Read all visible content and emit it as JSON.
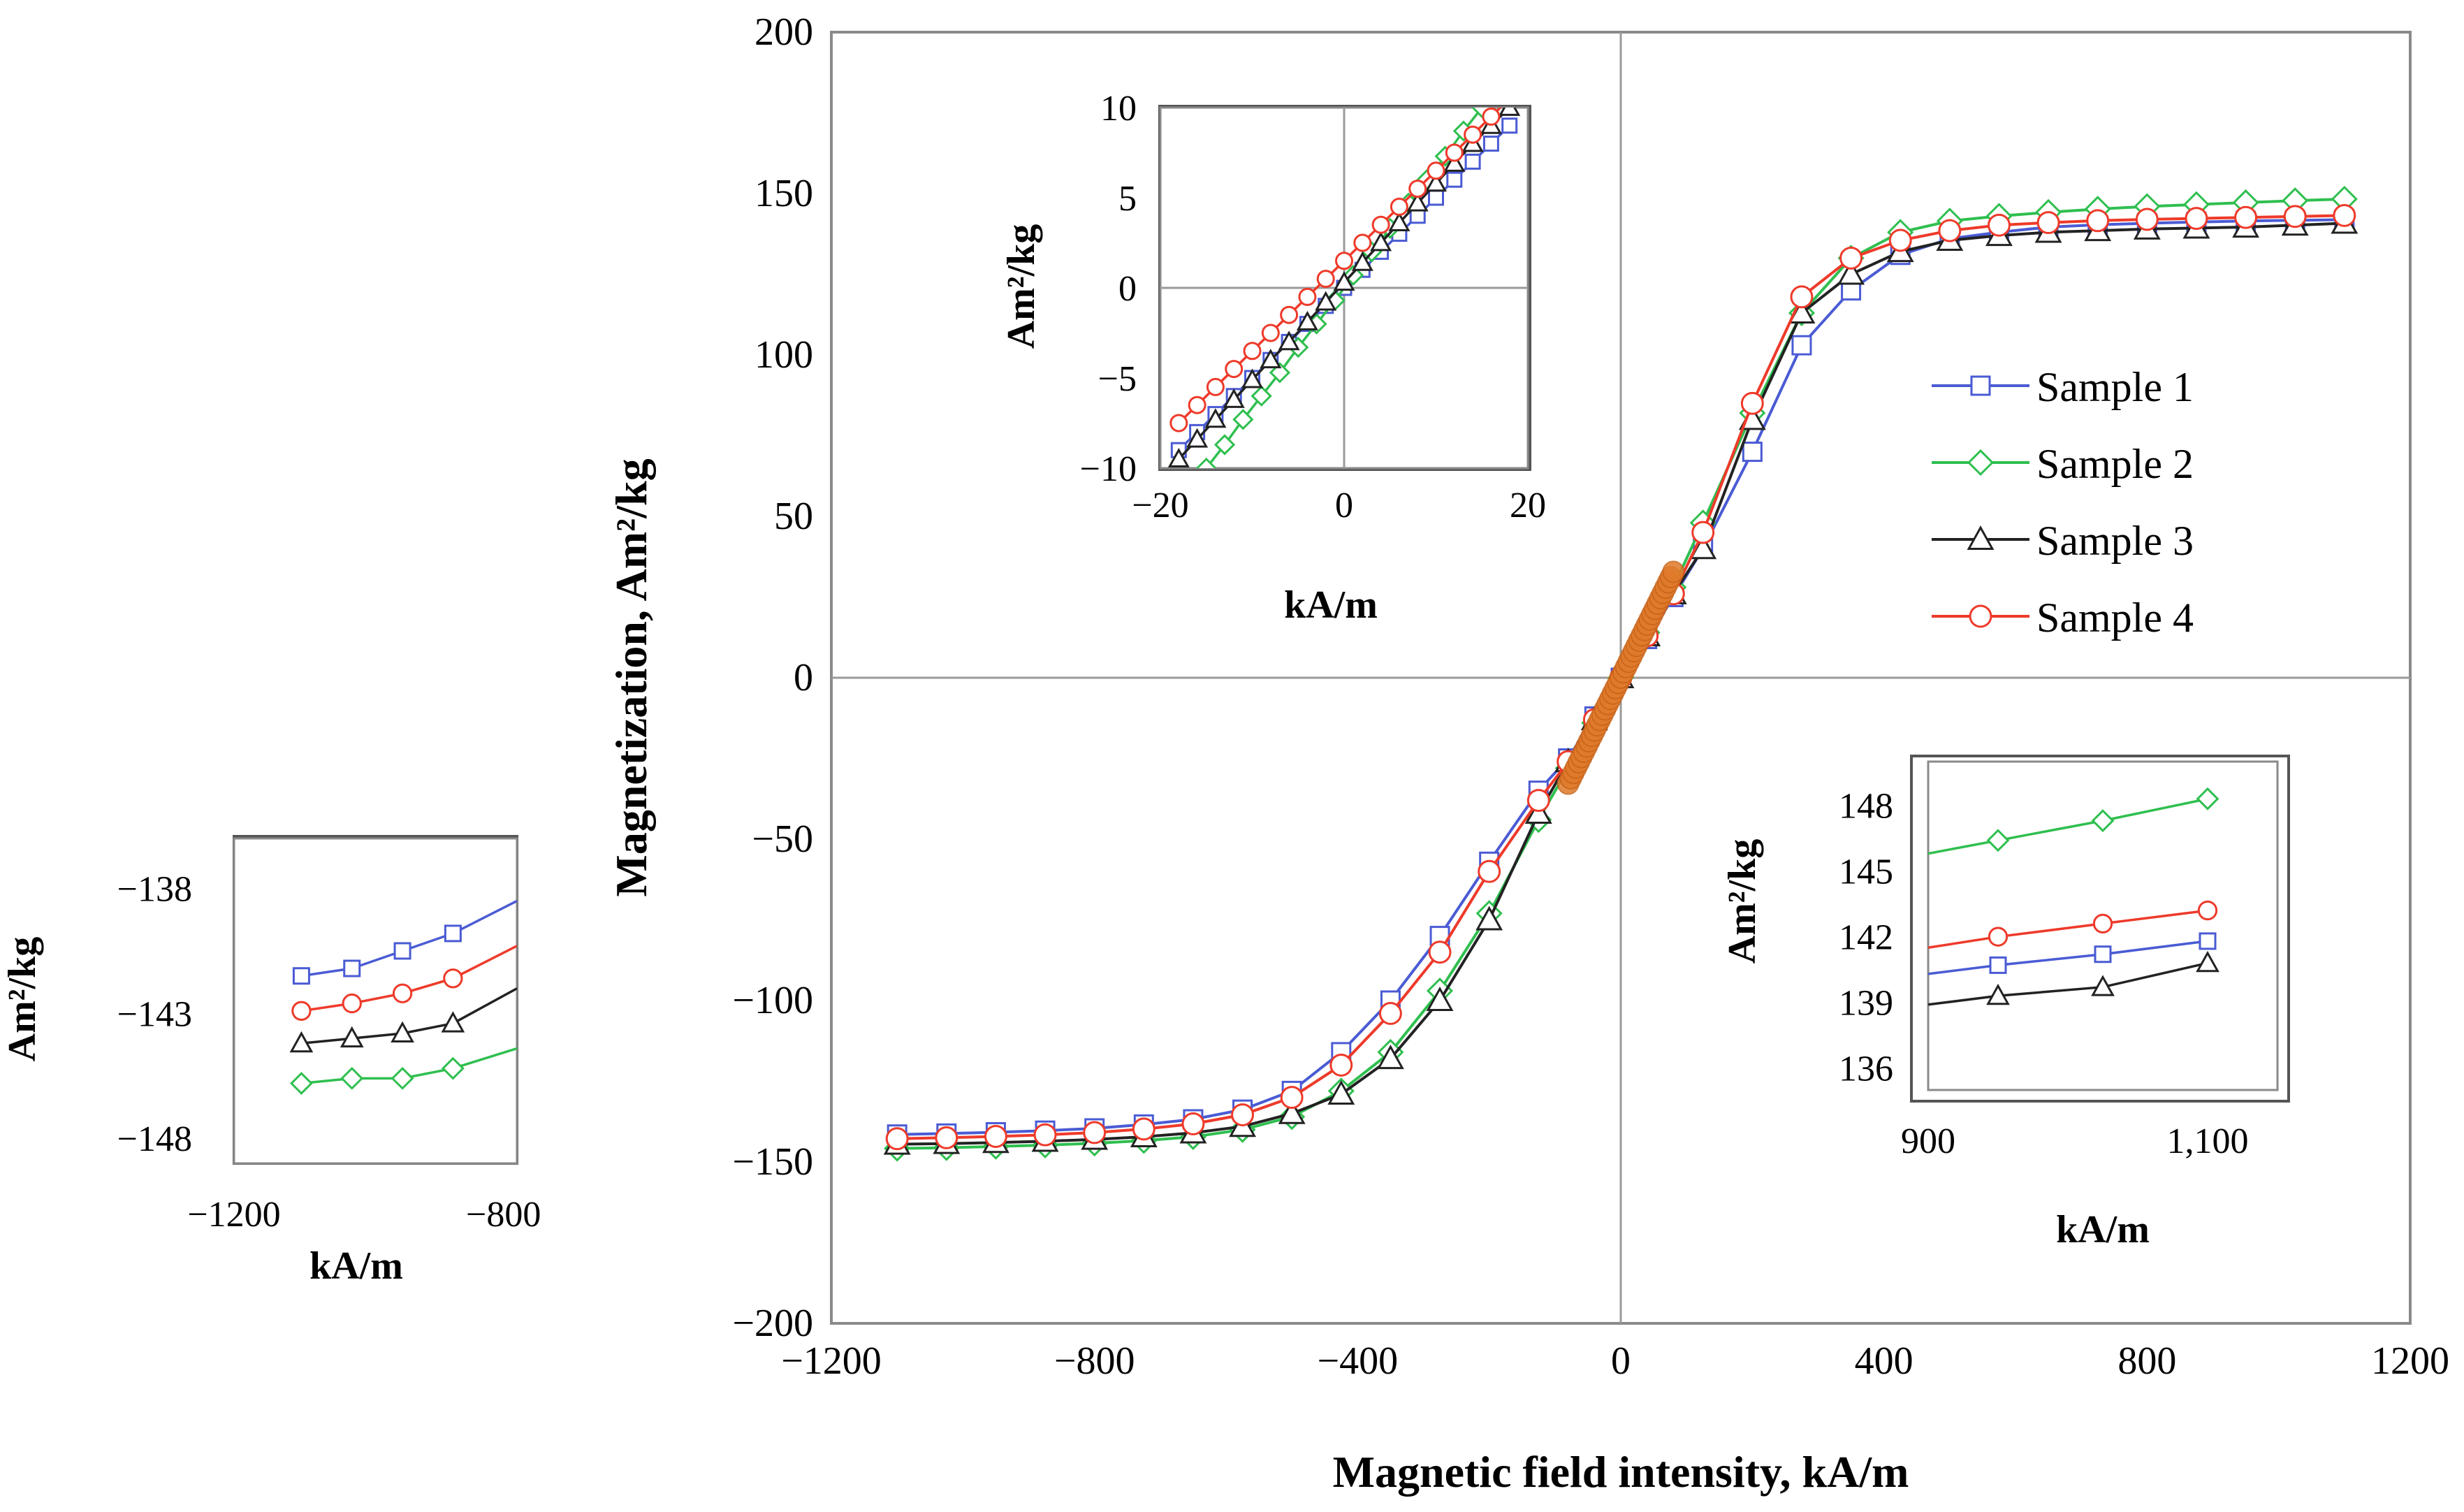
{
  "chart_data": [
    {
      "id": "main",
      "type": "line",
      "title": "",
      "xlabel": "Magnetic field intensity, kA/m",
      "ylabel": "Magnetization, Am²/kg",
      "xlim": [
        -1200,
        1200
      ],
      "ylim": [
        -200,
        200
      ],
      "xticks": [
        -1200,
        -800,
        -400,
        0,
        400,
        800,
        1200
      ],
      "yticks": [
        -200,
        -150,
        -100,
        -50,
        0,
        50,
        100,
        150,
        200
      ],
      "xtick_labels": [
        "−1200",
        "−800",
        "−400",
        "0",
        "400",
        "800",
        "1200"
      ],
      "ytick_labels": [
        "−200",
        "−150",
        "−100",
        "−50",
        "0",
        "50",
        "100",
        "150",
        "200"
      ],
      "legend_position": "right",
      "series": [
        {
          "name": "Sample 1",
          "color": "#4a5bd4",
          "marker": "square",
          "x": [
            -1100,
            -1025,
            -950,
            -875,
            -800,
            -725,
            -650,
            -575,
            -500,
            -425,
            -350,
            -275,
            -200,
            -125,
            -80,
            -40,
            0,
            40,
            80,
            125,
            200,
            275,
            350,
            425,
            500,
            575,
            650,
            725,
            800,
            875,
            950,
            1025,
            1100
          ],
          "y": [
            -141.5,
            -141.2,
            -140.8,
            -140.3,
            -139.6,
            -138.4,
            -136.8,
            -133.8,
            -128,
            -116,
            -100,
            -80,
            -57,
            -35,
            -25,
            -12,
            0,
            12,
            25,
            40,
            70,
            103,
            120,
            131,
            136,
            138,
            139.6,
            140.3,
            140.8,
            141.2,
            141.5,
            141.7,
            141.9
          ]
        },
        {
          "name": "Sample 2",
          "color": "#2fbf4f",
          "marker": "diamond",
          "x": [
            -1100,
            -1025,
            -950,
            -875,
            -800,
            -725,
            -650,
            -575,
            -500,
            -425,
            -350,
            -275,
            -200,
            -125,
            -80,
            -40,
            0,
            40,
            80,
            125,
            200,
            275,
            350,
            425,
            500,
            575,
            650,
            725,
            800,
            875,
            950,
            1025,
            1100
          ],
          "y": [
            -145.8,
            -145.6,
            -145.2,
            -144.8,
            -144.2,
            -143.4,
            -142.2,
            -140,
            -136,
            -128,
            -116,
            -97,
            -73,
            -44,
            -28,
            -14,
            0,
            14,
            28,
            48,
            82,
            113,
            130,
            138,
            141.5,
            143,
            144.2,
            145.2,
            146,
            146.6,
            147.2,
            147.8,
            148.3
          ]
        },
        {
          "name": "Sample 3",
          "color": "#222222",
          "marker": "triangle",
          "x": [
            -1100,
            -1025,
            -950,
            -875,
            -800,
            -725,
            -650,
            -575,
            -500,
            -425,
            -350,
            -275,
            -200,
            -125,
            -80,
            -40,
            0,
            40,
            80,
            125,
            200,
            275,
            350,
            425,
            500,
            575,
            650,
            725,
            800,
            875,
            950,
            1025,
            1100
          ],
          "y": [
            -144.5,
            -144.3,
            -144,
            -143.6,
            -143,
            -142.2,
            -141,
            -139,
            -135,
            -129,
            -118,
            -100,
            -75,
            -42,
            -26,
            -13,
            0,
            13,
            26,
            40,
            80,
            113,
            125,
            132,
            135.5,
            137,
            138,
            138.5,
            139,
            139.3,
            139.6,
            140.2,
            140.8
          ]
        },
        {
          "name": "Sample 4",
          "color": "#ee3a2a",
          "marker": "circle",
          "x": [
            -1100,
            -1025,
            -950,
            -875,
            -800,
            -725,
            -650,
            -575,
            -500,
            -425,
            -350,
            -275,
            -200,
            -125,
            -80,
            -40,
            0,
            40,
            80,
            125,
            200,
            275,
            350,
            425,
            500,
            575,
            650,
            725,
            800,
            875,
            950,
            1025,
            1100
          ],
          "y": [
            -142.8,
            -142.5,
            -142.1,
            -141.6,
            -140.9,
            -139.8,
            -138.2,
            -135.4,
            -130,
            -120,
            -104,
            -85,
            -60,
            -38,
            -26,
            -13,
            0,
            13,
            26,
            45,
            85,
            118,
            130,
            135.5,
            138.5,
            140.2,
            141,
            141.6,
            142,
            142.3,
            142.6,
            142.9,
            143.2
          ]
        }
      ]
    },
    {
      "id": "inset_center",
      "type": "line",
      "title": "",
      "xlabel": "kA/m",
      "ylabel": "Am²/kg",
      "xlim": [
        -20,
        20
      ],
      "ylim": [
        -10,
        10
      ],
      "xticks": [
        -20,
        0,
        20
      ],
      "yticks": [
        -10,
        -5,
        0,
        5,
        10
      ],
      "xtick_labels": [
        "−20",
        "0",
        "20"
      ],
      "ytick_labels": [
        "−10",
        "−5",
        "0",
        "5",
        "10"
      ],
      "series": [
        {
          "name": "Sample 1",
          "color": "#4a5bd4",
          "marker": "square",
          "x": [
            -18,
            -16,
            -14,
            -12,
            -10,
            -8,
            -6,
            -4,
            -2,
            0,
            2,
            4,
            6,
            8,
            10,
            12,
            14,
            16,
            18
          ],
          "y": [
            -9,
            -8,
            -7,
            -6,
            -5,
            -4,
            -3,
            -2,
            -1,
            0,
            1,
            2,
            3,
            4,
            5,
            6,
            7,
            8,
            9
          ]
        },
        {
          "name": "Sample 2",
          "color": "#2fbf4f",
          "marker": "diamond",
          "x": [
            -15,
            -13,
            -11,
            -9,
            -7,
            -5,
            -3,
            -1,
            1,
            3,
            5,
            7,
            9,
            11,
            13,
            15
          ],
          "y": [
            -10,
            -8.7,
            -7.3,
            -6,
            -4.7,
            -3.3,
            -2,
            -0.7,
            0.7,
            2,
            3.3,
            4.7,
            6,
            7.3,
            8.7,
            10
          ]
        },
        {
          "name": "Sample 3",
          "color": "#222222",
          "marker": "triangle",
          "x": [
            -18,
            -16,
            -14,
            -12,
            -10,
            -8,
            -6,
            -4,
            -2,
            0,
            2,
            4,
            6,
            8,
            10,
            12,
            14,
            16,
            18
          ],
          "y": [
            -9.5,
            -8.4,
            -7.3,
            -6.2,
            -5.1,
            -4,
            -3,
            -1.9,
            -0.8,
            0.3,
            1.4,
            2.5,
            3.6,
            4.7,
            5.8,
            6.9,
            8,
            9,
            10
          ]
        },
        {
          "name": "Sample 4",
          "color": "#ee3a2a",
          "marker": "circle",
          "x": [
            -18,
            -16,
            -14,
            -12,
            -10,
            -8,
            -6,
            -4,
            -2,
            0,
            2,
            4,
            6,
            8,
            10,
            12,
            14,
            16,
            18
          ],
          "y": [
            -7.5,
            -6.5,
            -5.5,
            -4.5,
            -3.5,
            -2.5,
            -1.5,
            -0.5,
            0.5,
            1.5,
            2.5,
            3.5,
            4.5,
            5.5,
            6.5,
            7.5,
            8.5,
            9.5,
            10.5
          ]
        }
      ]
    },
    {
      "id": "inset_right",
      "type": "line",
      "title": "",
      "xlabel": "kA/m",
      "ylabel": "Am²/kg",
      "xlim": [
        900,
        1150
      ],
      "ylim": [
        135,
        150
      ],
      "xticks": [
        900,
        1100
      ],
      "yticks": [
        136,
        139,
        142,
        145,
        148
      ],
      "xtick_labels": [
        "900",
        "1,100"
      ],
      "ytick_labels": [
        "136",
        "139",
        "142",
        "145",
        "148"
      ],
      "series": [
        {
          "name": "Sample 1",
          "color": "#4a5bd4",
          "marker": "square",
          "x": [
            900,
            950,
            1025,
            1100
          ],
          "y": [
            140.3,
            140.7,
            141.2,
            141.8
          ],
          "marked": [
            false,
            true,
            true,
            true
          ]
        },
        {
          "name": "Sample 2",
          "color": "#2fbf4f",
          "marker": "diamond",
          "x": [
            900,
            950,
            1025,
            1100
          ],
          "y": [
            145.8,
            146.4,
            147.3,
            148.3
          ],
          "marked": [
            false,
            true,
            true,
            true
          ]
        },
        {
          "name": "Sample 3",
          "color": "#222222",
          "marker": "triangle",
          "x": [
            900,
            950,
            1025,
            1100
          ],
          "y": [
            138.9,
            139.3,
            139.7,
            140.8
          ],
          "marked": [
            false,
            true,
            true,
            true
          ]
        },
        {
          "name": "Sample 4",
          "color": "#ee3a2a",
          "marker": "circle",
          "x": [
            900,
            950,
            1025,
            1100
          ],
          "y": [
            141.5,
            142,
            142.6,
            143.2
          ],
          "marked": [
            false,
            true,
            true,
            true
          ]
        }
      ]
    },
    {
      "id": "inset_left",
      "type": "line",
      "title": "",
      "xlabel": "kA/m",
      "ylabel": "Am²/kg",
      "xlim": [
        -1200,
        -780
      ],
      "ylim": [
        -149,
        -136
      ],
      "xticks": [
        -1200,
        -800
      ],
      "yticks": [
        -148,
        -143,
        -138
      ],
      "xtick_labels": [
        "−1200",
        "−800"
      ],
      "ytick_labels": [
        "−148",
        "−143",
        "−138"
      ],
      "series": [
        {
          "name": "Sample 1",
          "color": "#4a5bd4",
          "marker": "square",
          "x": [
            -1100,
            -1025,
            -950,
            -875,
            -780
          ],
          "y": [
            -141.5,
            -141.2,
            -140.5,
            -139.8,
            -138.5
          ],
          "marked": [
            true,
            true,
            true,
            true,
            false
          ]
        },
        {
          "name": "Sample 2",
          "color": "#2fbf4f",
          "marker": "diamond",
          "x": [
            -1100,
            -1025,
            -950,
            -875,
            -780
          ],
          "y": [
            -145.8,
            -145.6,
            -145.6,
            -145.2,
            -144.4
          ],
          "marked": [
            true,
            true,
            true,
            true,
            false
          ]
        },
        {
          "name": "Sample 3",
          "color": "#222222",
          "marker": "triangle",
          "x": [
            -1100,
            -1025,
            -950,
            -875,
            -780
          ],
          "y": [
            -144.2,
            -144.0,
            -143.8,
            -143.4,
            -142.0
          ],
          "marked": [
            true,
            true,
            true,
            true,
            false
          ]
        },
        {
          "name": "Sample 4",
          "color": "#ee3a2a",
          "marker": "circle",
          "x": [
            -1100,
            -1025,
            -950,
            -875,
            -780
          ],
          "y": [
            -142.9,
            -142.6,
            -142.2,
            -141.6,
            -140.3
          ],
          "marked": [
            true,
            true,
            true,
            true,
            false
          ]
        }
      ]
    }
  ]
}
